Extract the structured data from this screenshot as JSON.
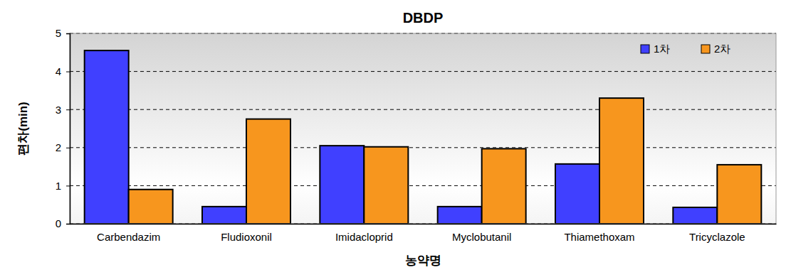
{
  "chart_data": {
    "type": "bar",
    "title": "DBDP",
    "x_label": "농약명",
    "y_label": "편차(min)",
    "categories": [
      "Carbendazim",
      "Fludioxonil",
      "Imidacloprid",
      "Myclobutanil",
      "Thiamethoxam",
      "Tricyclazole"
    ],
    "series": [
      {
        "name": "1차",
        "color": "#4040ff",
        "values": [
          4.55,
          0.45,
          2.05,
          0.45,
          1.57,
          0.43
        ]
      },
      {
        "name": "2차",
        "color": "#f7961e",
        "values": [
          0.9,
          2.75,
          2.02,
          1.97,
          3.3,
          1.55
        ]
      }
    ],
    "ylim": [
      0,
      5
    ],
    "yticks": [
      0,
      1,
      2,
      3,
      4,
      5
    ],
    "grid": true,
    "legend": "top-right"
  }
}
